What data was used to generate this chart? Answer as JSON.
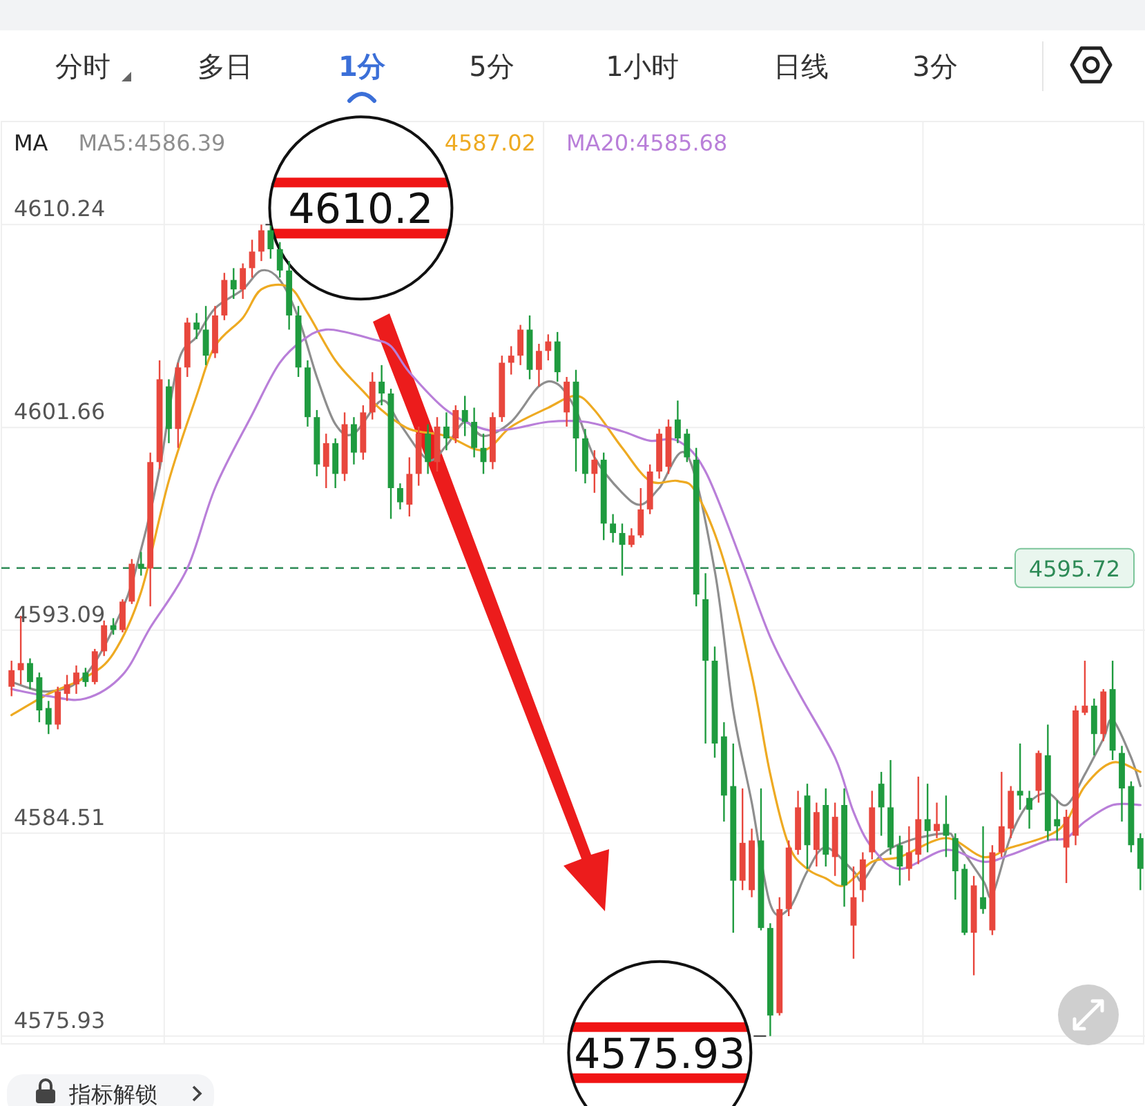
{
  "chart_data": {
    "type": "candlestick",
    "categories": [
      null,
      null,
      null,
      null,
      null,
      null,
      null,
      null,
      null,
      null,
      null,
      null,
      null,
      null,
      null,
      null,
      null,
      null,
      null,
      null,
      null,
      null,
      null,
      null,
      null,
      null,
      null,
      null,
      null,
      null,
      null,
      null,
      null,
      null,
      null,
      null,
      null,
      null,
      null,
      null,
      null,
      null,
      null,
      null,
      null,
      null,
      null,
      null,
      null,
      null,
      null,
      null,
      null,
      null,
      null,
      null,
      null,
      null,
      null,
      null,
      null,
      null,
      null,
      null,
      null,
      null,
      null,
      null,
      null,
      null,
      null,
      null,
      null,
      null,
      null,
      null,
      null,
      null,
      null,
      null,
      null,
      null,
      null,
      null,
      null,
      null,
      null,
      null,
      null,
      null,
      null,
      null,
      null,
      null,
      null,
      null,
      null,
      null,
      null,
      null,
      null,
      null,
      null,
      null,
      null,
      null,
      null,
      null,
      null,
      null,
      null,
      null,
      null,
      null,
      null,
      null,
      null,
      null,
      null,
      null,
      null,
      null,
      null
    ],
    "ohlc": [
      [
        4590.7,
        4591.8,
        4590.3,
        4591.4
      ],
      [
        4591.4,
        4593.7,
        4590.8,
        4591.7
      ],
      [
        4591.7,
        4591.9,
        4590.6,
        4590.9
      ],
      [
        4591.1,
        4591.3,
        4589.2,
        4589.7
      ],
      [
        4589.8,
        4590.1,
        4588.7,
        4589.1
      ],
      [
        4589.1,
        4590.7,
        4588.9,
        4590.5
      ],
      [
        4590.4,
        4591.2,
        4590.1,
        4590.8
      ],
      [
        4590.8,
        4591.6,
        4590.4,
        4591.3
      ],
      [
        4591.3,
        4591.5,
        4590.7,
        4590.9
      ],
      [
        4590.9,
        4592.3,
        4590.8,
        4592.2
      ],
      [
        4592.2,
        4593.5,
        4592.0,
        4593.3
      ],
      [
        4593.3,
        4593.6,
        4592.9,
        4593.1
      ],
      [
        4593.1,
        4594.4,
        4593.0,
        4594.3
      ],
      [
        4594.3,
        4596.1,
        4594.2,
        4595.9
      ],
      [
        4595.9,
        4596.4,
        4595.4,
        4595.7
      ],
      [
        4595.7,
        4600.6,
        4594.1,
        4600.2
      ],
      [
        4600.2,
        4604.5,
        4599.9,
        4603.7
      ],
      [
        4603.4,
        4603.7,
        4601.0,
        4601.6
      ],
      [
        4601.6,
        4604.4,
        4600.8,
        4604.2
      ],
      [
        4604.2,
        4606.3,
        4603.8,
        4606.1
      ],
      [
        4606.1,
        4606.5,
        4605.4,
        4605.8
      ],
      [
        4605.8,
        4606.8,
        4604.3,
        4604.7
      ],
      [
        4604.8,
        4606.8,
        4604.6,
        4606.4
      ],
      [
        4606.4,
        4608.2,
        4606.2,
        4607.9
      ],
      [
        4607.9,
        4608.4,
        4607.1,
        4607.5
      ],
      [
        4607.5,
        4608.6,
        4607.1,
        4608.4
      ],
      [
        4608.4,
        4609.6,
        4608.0,
        4609.1
      ],
      [
        4609.1,
        4610.24,
        4608.7,
        4610.0
      ],
      [
        4610.0,
        4610.2,
        4608.8,
        4609.2
      ],
      [
        4609.2,
        4609.5,
        4608.0,
        4608.3
      ],
      [
        4608.3,
        4608.7,
        4605.8,
        4606.4
      ],
      [
        4606.4,
        4606.8,
        4603.8,
        4604.2
      ],
      [
        4604.2,
        4604.5,
        4601.7,
        4602.1
      ],
      [
        4602.1,
        4602.4,
        4599.6,
        4600.1
      ],
      [
        4600.0,
        4601.4,
        4599.1,
        4601.0
      ],
      [
        4601.0,
        4601.2,
        4599.1,
        4599.7
      ],
      [
        4599.7,
        4602.3,
        4599.4,
        4601.8
      ],
      [
        4601.8,
        4602.1,
        4600.1,
        4600.6
      ],
      [
        4600.6,
        4602.6,
        4600.3,
        4602.3
      ],
      [
        4602.3,
        4604.0,
        4602.0,
        4603.6
      ],
      [
        4603.6,
        4604.3,
        4602.6,
        4603.1
      ],
      [
        4603.1,
        4603.3,
        4597.8,
        4599.1
      ],
      [
        4599.1,
        4599.3,
        4598.2,
        4598.5
      ],
      [
        4598.4,
        4600.4,
        4597.9,
        4599.7
      ],
      [
        4599.7,
        4601.7,
        4599.2,
        4601.4
      ],
      [
        4601.4,
        4601.8,
        4599.7,
        4600.2
      ],
      [
        4600.2,
        4602.1,
        4599.8,
        4601.7
      ],
      [
        4601.7,
        4602.3,
        4600.7,
        4601.2
      ],
      [
        4601.2,
        4602.6,
        4601.0,
        4602.4
      ],
      [
        4602.4,
        4603.0,
        4601.3,
        4601.9
      ],
      [
        4601.9,
        4602.5,
        4600.4,
        4600.8
      ],
      [
        4600.8,
        4601.4,
        4599.7,
        4600.2
      ],
      [
        4600.2,
        4602.3,
        4599.9,
        4602.1
      ],
      [
        4602.1,
        4604.7,
        4601.9,
        4604.4
      ],
      [
        4604.4,
        4605.1,
        4603.9,
        4604.7
      ],
      [
        4604.7,
        4606.0,
        4604.3,
        4605.8
      ],
      [
        4605.8,
        4606.4,
        4603.7,
        4604.1
      ],
      [
        4604.1,
        4605.2,
        4603.4,
        4604.9
      ],
      [
        4604.9,
        4605.6,
        4604.5,
        4605.3
      ],
      [
        4605.3,
        4605.7,
        4603.6,
        4604.0
      ],
      [
        4602.3,
        4603.8,
        4601.7,
        4603.6
      ],
      [
        4603.6,
        4604.1,
        4599.8,
        4601.2
      ],
      [
        4601.2,
        4601.6,
        4599.3,
        4599.7
      ],
      [
        4599.7,
        4600.7,
        4598.9,
        4600.3
      ],
      [
        4600.3,
        4600.6,
        4596.9,
        4597.6
      ],
      [
        4597.6,
        4598.0,
        4596.8,
        4597.2
      ],
      [
        4597.2,
        4597.6,
        4595.4,
        4596.7
      ],
      [
        4596.7,
        4597.4,
        4596.6,
        4597.1
      ],
      [
        4597.1,
        4599.1,
        4597.0,
        4598.2
      ],
      [
        4598.2,
        4600.1,
        4598.0,
        4599.8
      ],
      [
        4599.8,
        4601.6,
        4599.5,
        4601.4
      ],
      [
        4600.0,
        4602.0,
        4599.7,
        4601.7
      ],
      [
        4602.0,
        4602.8,
        4601.0,
        4601.2
      ],
      [
        4601.4,
        4601.6,
        4600.2,
        4600.4
      ],
      [
        4600.3,
        4600.8,
        4594.1,
        4594.6
      ],
      [
        4594.4,
        4595.5,
        4588.3,
        4591.8
      ],
      [
        4591.8,
        4592.4,
        4587.7,
        4588.3
      ],
      [
        4588.6,
        4589.2,
        4585.0,
        4586.1
      ],
      [
        4586.5,
        4588.3,
        4580.3,
        4582.5
      ],
      [
        4582.5,
        4586.4,
        4582.1,
        4584.1
      ],
      [
        4582.1,
        4584.7,
        4581.8,
        4584.2
      ],
      [
        4584.2,
        4586.4,
        4580.4,
        4580.5
      ],
      [
        4580.5,
        4580.7,
        4575.93,
        4576.8
      ],
      [
        4576.9,
        4581.8,
        4576.8,
        4581.3
      ],
      [
        4581.3,
        4584.2,
        4581.0,
        4583.9
      ],
      [
        4583.8,
        4586.3,
        4583.6,
        4585.6
      ],
      [
        4586.1,
        4586.6,
        4583.0,
        4584.0
      ],
      [
        4583.8,
        4585.8,
        4583.1,
        4585.4
      ],
      [
        4585.7,
        4586.4,
        4583.1,
        4583.6
      ],
      [
        4583.5,
        4585.8,
        4582.7,
        4585.2
      ],
      [
        4585.7,
        4586.4,
        4581.4,
        4582.3
      ],
      [
        4580.6,
        4583.1,
        4579.2,
        4581.8
      ],
      [
        4582.1,
        4583.7,
        4581.6,
        4583.4
      ],
      [
        4583.7,
        4586.3,
        4583.4,
        4585.6
      ],
      [
        4586.6,
        4587.1,
        4584.4,
        4585.6
      ],
      [
        4585.6,
        4587.6,
        4583.6,
        4583.9
      ],
      [
        4584.0,
        4584.4,
        4582.3,
        4583.1
      ],
      [
        4583.0,
        4584.8,
        4582.5,
        4583.7
      ],
      [
        4583.6,
        4586.9,
        4583.2,
        4585.1
      ],
      [
        4585.1,
        4586.6,
        4583.7,
        4584.6
      ],
      [
        4584.6,
        4585.8,
        4584.3,
        4584.9
      ],
      [
        4584.9,
        4586.1,
        4583.5,
        4584.4
      ],
      [
        4584.3,
        4584.5,
        4581.7,
        4582.9
      ],
      [
        4583.0,
        4583.2,
        4580.2,
        4580.3
      ],
      [
        4580.3,
        4582.7,
        4578.5,
        4582.3
      ],
      [
        4581.8,
        4584.8,
        4581.1,
        4581.3
      ],
      [
        4580.4,
        4584.0,
        4580.2,
        4583.7
      ],
      [
        4583.7,
        4587.1,
        4583.5,
        4584.8
      ],
      [
        4584.7,
        4586.5,
        4584.3,
        4586.3
      ],
      [
        4586.3,
        4588.3,
        4585.5,
        4586.1
      ],
      [
        4586.0,
        4586.3,
        4584.7,
        4585.5
      ],
      [
        4586.3,
        4588.0,
        4585.8,
        4587.9
      ],
      [
        4587.8,
        4589.1,
        4584.2,
        4584.6
      ],
      [
        4585.1,
        4585.9,
        4584.2,
        4584.8
      ],
      [
        4583.9,
        4585.5,
        4582.4,
        4585.2
      ],
      [
        4584.4,
        4589.9,
        4584.0,
        4589.7
      ],
      [
        4589.6,
        4591.8,
        4589.5,
        4589.9
      ],
      [
        4589.9,
        4590.2,
        4587.8,
        4588.7
      ],
      [
        4588.7,
        4590.6,
        4588.4,
        4590.5
      ],
      [
        4590.6,
        4591.8,
        4587.6,
        4588.0
      ],
      [
        4587.9,
        4588.2,
        4585.0,
        4586.4
      ],
      [
        4586.5,
        4586.7,
        4583.7,
        4584.0
      ],
      [
        4584.3,
        4584.5,
        4582.1,
        4583.0
      ]
    ],
    "colors": [
      "#e8473d",
      "#e8473d",
      "#1f9b3f",
      "#1f9b3f",
      "#1f9b3f",
      "#e8473d",
      "#e8473d",
      "#e8473d",
      "#1f9b3f",
      "#e8473d",
      "#e8473d",
      "#1f9b3f",
      "#e8473d",
      "#e8473d",
      "#1f9b3f",
      "#e8473d",
      "#e8473d",
      "#1f9b3f",
      "#e8473d",
      "#e8473d",
      "#1f9b3f",
      "#1f9b3f",
      "#e8473d",
      "#e8473d",
      "#1f9b3f",
      "#e8473d",
      "#e8473d",
      "#e8473d",
      "#1f9b3f",
      "#1f9b3f",
      "#1f9b3f",
      "#1f9b3f",
      "#1f9b3f",
      "#1f9b3f",
      "#e8473d",
      "#1f9b3f",
      "#e8473d",
      "#1f9b3f",
      "#e8473d",
      "#e8473d",
      "#1f9b3f",
      "#1f9b3f",
      "#1f9b3f",
      "#e8473d",
      "#e8473d",
      "#1f9b3f",
      "#e8473d",
      "#1f9b3f",
      "#e8473d",
      "#1f9b3f",
      "#1f9b3f",
      "#1f9b3f",
      "#e8473d",
      "#e8473d",
      "#e8473d",
      "#e8473d",
      "#1f9b3f",
      "#e8473d",
      "#e8473d",
      "#1f9b3f",
      "#e8473d",
      "#1f9b3f",
      "#1f9b3f",
      "#e8473d",
      "#1f9b3f",
      "#1f9b3f",
      "#1f9b3f",
      "#e8473d",
      "#e8473d",
      "#e8473d",
      "#e8473d",
      "#e8473d",
      "#1f9b3f",
      "#1f9b3f",
      "#1f9b3f",
      "#1f9b3f",
      "#1f9b3f",
      "#1f9b3f",
      "#1f9b3f",
      "#e8473d",
      "#e8473d",
      "#1f9b3f",
      "#1f9b3f",
      "#e8473d",
      "#e8473d",
      "#e8473d",
      "#1f9b3f",
      "#e8473d",
      "#1f9b3f",
      "#e8473d",
      "#1f9b3f",
      "#e8473d",
      "#e8473d",
      "#e8473d",
      "#1f9b3f",
      "#1f9b3f",
      "#1f9b3f",
      "#e8473d",
      "#e8473d",
      "#1f9b3f",
      "#e8473d",
      "#1f9b3f",
      "#1f9b3f",
      "#1f9b3f",
      "#e8473d",
      "#1f9b3f",
      "#e8473d",
      "#e8473d",
      "#e8473d",
      "#1f9b3f",
      "#1f9b3f",
      "#e8473d",
      "#1f9b3f",
      "#1f9b3f",
      "#e8473d",
      "#e8473d",
      "#e8473d",
      "#1f9b3f",
      "#e8473d",
      "#1f9b3f",
      "#1f9b3f",
      "#1f9b3f",
      "#1f9b3f"
    ],
    "series": [
      {
        "type": "line",
        "name": "MA5:4586.39",
        "color": "#8e8e8e",
        "values": [
          4590.9,
          null,
          null,
          null,
          4590.5,
          null,
          null,
          null,
          4591.2,
          null,
          null,
          null,
          4594.0,
          null,
          4596.5,
          null,
          4599.9,
          null,
          4604.4,
          null,
          4605.5,
          null,
          4606.7,
          null,
          null,
          4607.5,
          null,
          4608.3,
          null,
          4607.9,
          null,
          4606.3,
          null,
          4603.8,
          null,
          4601.8,
          null,
          4601.4,
          null,
          null,
          4602.8,
          null,
          4601.8,
          null,
          null,
          4600.3,
          null,
          4600.9,
          null,
          4601.9,
          null,
          4601.3,
          null,
          null,
          4601.9,
          null,
          null,
          4603.4,
          null,
          4603.5,
          null,
          4602.4,
          null,
          4600.4,
          null,
          null,
          4598.9,
          null,
          4598.4,
          null,
          4599.1,
          null,
          null,
          4600.5,
          null,
          null,
          4595.6,
          null,
          4589.7,
          null,
          4585.8,
          null,
          4581.5,
          null,
          4581.3,
          null,
          4582.9,
          null,
          4583.9,
          null,
          null,
          4582.9,
          4582.5,
          null,
          4583.6,
          null,
          null,
          4584.2,
          null,
          null,
          null,
          4584.5,
          4584.2,
          null,
          null,
          4582.5,
          4581.9,
          null,
          4584.4,
          null,
          4585.8,
          null,
          4586.2,
          null,
          4585.7,
          null,
          4587.0,
          null,
          4588.5,
          4589.3,
          null,
          4587.7,
          4586.5
        ]
      },
      {
        "type": "line",
        "name": "4587.02",
        "color": "#eeaa22",
        "values": [
          4589.5,
          null,
          null,
          null,
          4590.4,
          null,
          null,
          null,
          4591.1,
          null,
          null,
          4592.1,
          null,
          null,
          4594.7,
          null,
          null,
          4599.4,
          null,
          null,
          4603.0,
          null,
          4605.1,
          null,
          null,
          4606.3,
          null,
          4607.5,
          null,
          null,
          4607.6,
          null,
          4606.5,
          null,
          null,
          4604.5,
          null,
          null,
          4603.2,
          null,
          4602.4,
          null,
          null,
          4601.6,
          null,
          null,
          null,
          4601.3,
          null,
          null,
          null,
          4600.7,
          null,
          null,
          4601.7,
          null,
          null,
          null,
          4602.5,
          null,
          null,
          4603.0,
          null,
          4602.4,
          null,
          null,
          4600.8,
          null,
          null,
          4599.4,
          null,
          null,
          4599.4,
          null,
          4598.9,
          null,
          null,
          4596.0,
          null,
          null,
          4591.2,
          null,
          4587.0,
          null,
          4584.0,
          null,
          4583.0,
          null,
          4582.6,
          null,
          4582.3,
          null,
          null,
          4583.3,
          null,
          null,
          4583.5,
          null,
          null,
          null,
          null,
          4584.3,
          null,
          null,
          null,
          4583.5,
          null,
          null,
          4583.9,
          null,
          null,
          null,
          4584.4,
          null,
          4585.0,
          null,
          4586.5,
          null,
          null,
          4587.5,
          null,
          null,
          4587.1
        ]
      },
      {
        "type": "line",
        "name": "MA20:4585.68",
        "color": "#b97fd9",
        "values": [
          4590.6,
          null,
          null,
          null,
          4590.3,
          null,
          null,
          null,
          4590.2,
          null,
          null,
          null,
          4591.2,
          null,
          null,
          4593.2,
          null,
          null,
          null,
          4595.7,
          null,
          null,
          4599.1,
          null,
          null,
          null,
          4602.2,
          null,
          null,
          4604.4,
          null,
          null,
          4605.5,
          null,
          4605.8,
          null,
          4605.7,
          null,
          null,
          4605.4,
          null,
          4605.1,
          null,
          4604.0,
          null,
          null,
          null,
          4602.4,
          null,
          null,
          null,
          4601.6,
          null,
          null,
          4601.6,
          null,
          null,
          null,
          4601.9,
          null,
          null,
          null,
          4601.9,
          null,
          null,
          null,
          4601.5,
          null,
          null,
          4601.1,
          null,
          null,
          4601.1,
          null,
          null,
          4599.8,
          null,
          null,
          null,
          4595.9,
          null,
          null,
          4592.8,
          null,
          null,
          4590.5,
          null,
          null,
          null,
          4587.7,
          null,
          4585.4,
          null,
          4583.9,
          null,
          null,
          4583.0,
          null,
          null,
          null,
          null,
          4583.8,
          null,
          null,
          null,
          4583.3,
          null,
          null,
          4583.6,
          null,
          null,
          null,
          4584.2,
          null,
          4584.3,
          null,
          4585.0,
          null,
          null,
          4585.7,
          null,
          null,
          4585.7
        ]
      }
    ],
    "ylim": [
      4575.6,
      4614.6
    ],
    "yticks": [
      4610.24,
      4601.66,
      4593.09,
      4584.51,
      4575.93
    ],
    "tick_labels": "y",
    "grid": true,
    "legend": "top left",
    "legend_title": "MA",
    "ref_lines": [
      {
        "axis": "y",
        "value": 4595.72,
        "label": "4595.72",
        "color": "#2e8b57",
        "line_style": "dashed"
      }
    ],
    "annotations": [
      "分时",
      "多日",
      "1分",
      "5分",
      "1小时",
      "日线",
      "3分",
      "指标解锁",
      "4610.2",
      "4575.93"
    ]
  }
}
